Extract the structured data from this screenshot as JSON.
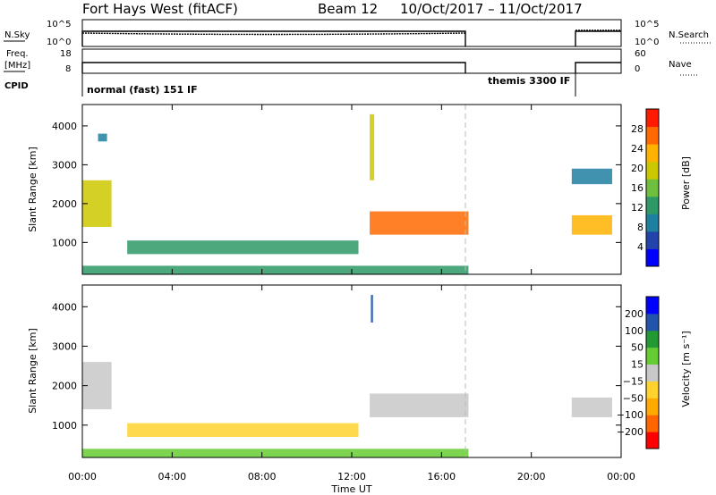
{
  "header": {
    "station": "Fort Hays West (fitACF)",
    "beam": "Beam 12",
    "dates": "10/Oct/2017 – 11/Oct/2017"
  },
  "strip_labels": {
    "nsky": "N.Sky",
    "nsearch": "N.Search",
    "freq_line1": "Freq.",
    "freq_line2": "[MHz]",
    "nave": "Nave",
    "cpid": "CPID",
    "noise_ticks": [
      "10^5",
      "10^0"
    ],
    "freq_ticks": [
      "18",
      "8"
    ],
    "nave_ticks": [
      "60",
      "0"
    ]
  },
  "cpid_labels": [
    "normal (fast) 151 IF",
    "themis 3300 IF"
  ],
  "colors": {
    "power": [
      "#0000ff",
      "#2244aa",
      "#1e7fa0",
      "#2e9966",
      "#6fbf3f",
      "#ccc800",
      "#ffb300",
      "#ff6a00",
      "#ff1a00"
    ],
    "velocity": [
      "#ff0000",
      "#ff6600",
      "#ffaa00",
      "#ffd22e",
      "#c8c8c8",
      "#66cc33",
      "#229933",
      "#2255aa",
      "#0000ff"
    ]
  },
  "chart_data": [
    {
      "type": "heatmap",
      "panel": "power",
      "xlabel": "",
      "ylabel": "Slant Range [km]",
      "x_range_hours": [
        0,
        24
      ],
      "ylim": [
        180,
        4550
      ],
      "yticks": [
        1000,
        2000,
        3000,
        4000
      ],
      "colorbar": {
        "label": "Power [dB]",
        "ticks": [
          "4",
          "8",
          "12",
          "16",
          "20",
          "24",
          "28"
        ],
        "range": [
          0,
          32
        ]
      },
      "echo_regions": [
        {
          "t": [
            0.0,
            1.3
          ],
          "range_km": [
            1400,
            2600
          ],
          "value": 20
        },
        {
          "t": [
            0.7,
            1.1
          ],
          "range_km": [
            3600,
            3800
          ],
          "value": 10
        },
        {
          "t": [
            2.0,
            12.3
          ],
          "range_km": [
            700,
            1050
          ],
          "value": 12
        },
        {
          "t": [
            0.0,
            17.2
          ],
          "range_km": [
            180,
            400
          ],
          "value": 14
        },
        {
          "t": [
            12.8,
            17.2
          ],
          "range_km": [
            1200,
            1800
          ],
          "value": 26
        },
        {
          "t": [
            12.8,
            13.0
          ],
          "range_km": [
            2600,
            4300
          ],
          "value": 18
        },
        {
          "t": [
            21.8,
            23.6
          ],
          "range_km": [
            1200,
            1700
          ],
          "value": 24
        },
        {
          "t": [
            21.8,
            23.6
          ],
          "range_km": [
            2500,
            2900
          ],
          "value": 8
        }
      ]
    },
    {
      "type": "heatmap",
      "panel": "velocity",
      "xlabel": "Time UT",
      "ylabel": "Slant Range [km]",
      "x_range_hours": [
        0,
        24
      ],
      "xticks": [
        "00:00",
        "04:00",
        "08:00",
        "12:00",
        "16:00",
        "20:00",
        "00:00"
      ],
      "ylim": [
        180,
        4550
      ],
      "yticks": [
        1000,
        2000,
        3000,
        4000
      ],
      "colorbar": {
        "label": "Velocity [m s⁻¹]",
        "ticks": [
          "200",
          "100",
          "50",
          "15",
          "−15",
          "−50",
          "−100",
          "−200"
        ]
      },
      "echo_regions": [
        {
          "t": [
            0.0,
            1.3
          ],
          "range_km": [
            1400,
            2600
          ],
          "value": 0
        },
        {
          "t": [
            2.0,
            12.3
          ],
          "range_km": [
            700,
            1050
          ],
          "value": -40
        },
        {
          "t": [
            0.0,
            17.2
          ],
          "range_km": [
            180,
            400
          ],
          "value": 30
        },
        {
          "t": [
            12.8,
            17.2
          ],
          "range_km": [
            1200,
            1800
          ],
          "value": 0
        },
        {
          "t": [
            12.85,
            12.95
          ],
          "range_km": [
            3600,
            4300
          ],
          "value": 200
        },
        {
          "t": [
            21.8,
            23.6
          ],
          "range_km": [
            1200,
            1700
          ],
          "value": 0
        }
      ]
    }
  ]
}
